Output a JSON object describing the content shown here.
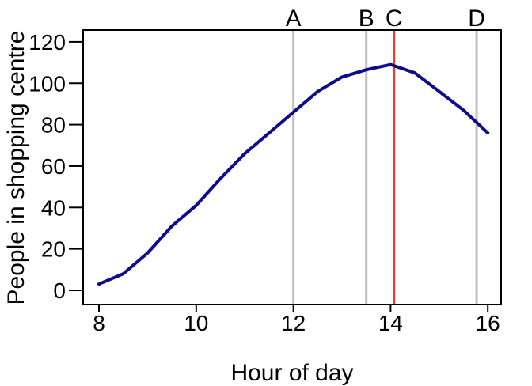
{
  "chart_data": {
    "type": "line",
    "title": "",
    "xlabel": "Hour of day",
    "ylabel": "People in shopping centre",
    "xlim": [
      8,
      16
    ],
    "ylim": [
      0,
      120
    ],
    "x_ticks": [
      8,
      10,
      12,
      14,
      16
    ],
    "y_ticks": [
      0,
      20,
      40,
      60,
      80,
      100,
      120
    ],
    "grid": false,
    "legend": "none",
    "series": [
      {
        "name": "People in shopping centre",
        "color": "#0b0b8b",
        "x": [
          8,
          8.5,
          9,
          9.5,
          10,
          10.5,
          11,
          11.5,
          12,
          12.5,
          13,
          13.5,
          14,
          14.5,
          15,
          15.5,
          16
        ],
        "values": [
          3,
          8,
          18,
          31,
          41,
          54,
          66,
          76,
          86,
          96,
          103,
          106.5,
          109,
          105,
          96,
          87,
          76
        ]
      }
    ],
    "markers": [
      {
        "label": "A",
        "x": 12,
        "color": "#c0c0c0"
      },
      {
        "label": "B",
        "x": 13.5,
        "color": "#c0c0c0"
      },
      {
        "label": "C",
        "x": 14.07,
        "color": "#f23a2b"
      },
      {
        "label": "D",
        "x": 15.77,
        "color": "#c0c0c0"
      }
    ]
  },
  "colors": {
    "axis": "#000000",
    "text": "#000000",
    "background": "#ffffff",
    "curve": "#0b0b8b",
    "marker_gray": "#c0c0c0",
    "marker_red": "#f23a2b"
  }
}
